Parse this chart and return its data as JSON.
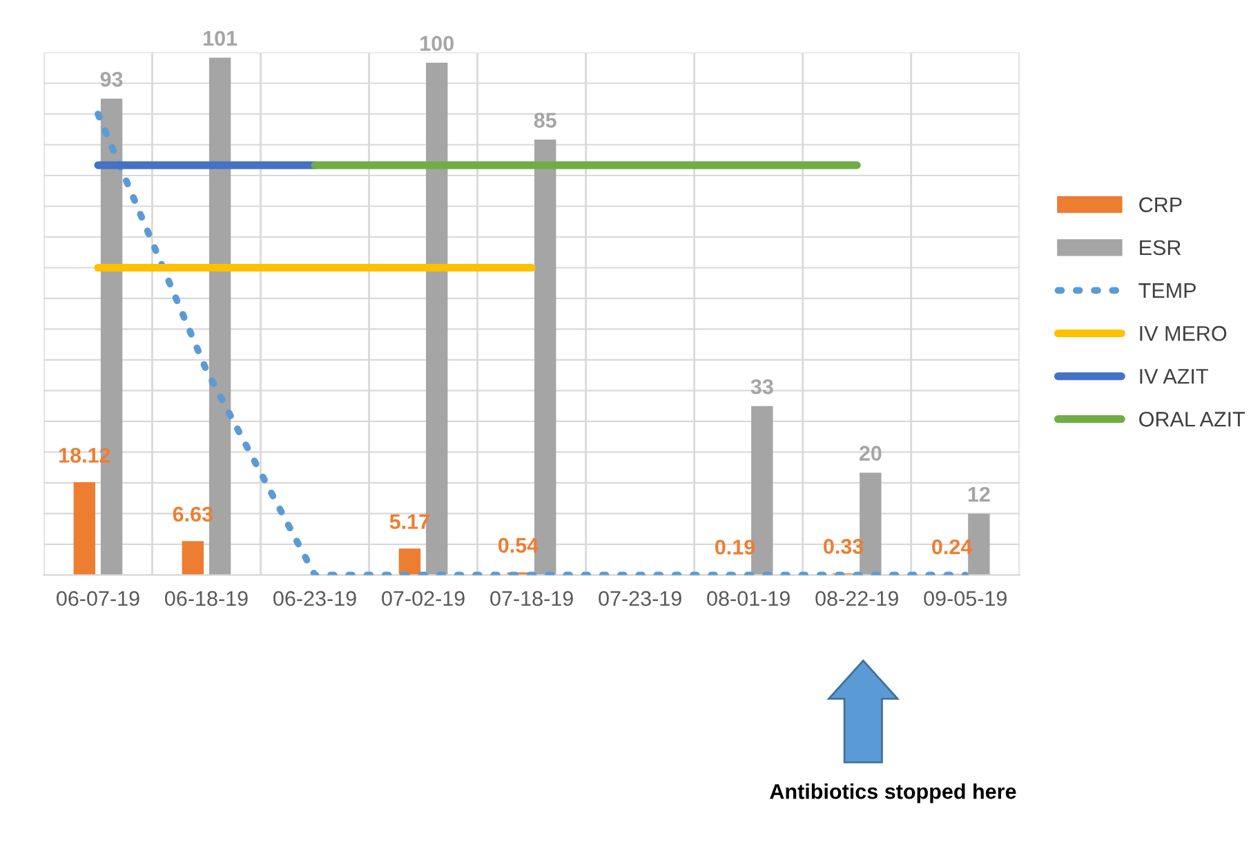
{
  "chart_data": {
    "type": "bar",
    "categories": [
      "06-07-19",
      "06-18-19",
      "06-23-19",
      "07-02-19",
      "07-18-19",
      "07-23-19",
      "08-01-19",
      "08-22-19",
      "09-05-19"
    ],
    "series": [
      {
        "name": "CRP",
        "color": "#ed7d31",
        "values": [
          18.12,
          6.63,
          null,
          5.17,
          0.54,
          null,
          0.19,
          0.33,
          0.24
        ],
        "value_labels": [
          "18.12",
          "6.63",
          null,
          "5.17",
          "0.54",
          null,
          "0.19",
          "0.33",
          "0.24"
        ]
      },
      {
        "name": "ESR",
        "color": "#a5a5a5",
        "values": [
          93,
          101,
          null,
          100,
          85,
          null,
          33,
          20,
          12
        ],
        "value_labels": [
          "93",
          "101",
          null,
          "100",
          "85",
          null,
          "33",
          "20",
          "12"
        ]
      },
      {
        "name": "TEMP",
        "type": "line",
        "line_style": "dotted",
        "color": "#5b9bd5",
        "values": [
          90,
          40,
          0,
          0,
          0,
          0,
          0,
          0,
          0
        ]
      },
      {
        "name": "IV MERO",
        "type": "line",
        "line_style": "solid",
        "color": "#ffc000",
        "values": [
          60,
          60,
          60,
          60,
          60,
          null,
          null,
          null,
          null
        ]
      },
      {
        "name": "IV AZIT",
        "type": "line",
        "line_style": "solid",
        "color": "#4472c4",
        "values": [
          80,
          80,
          80,
          null,
          null,
          null,
          null,
          null,
          null
        ]
      },
      {
        "name": "ORAL AZIT",
        "type": "line",
        "line_style": "solid",
        "color": "#70ad47",
        "values": [
          null,
          null,
          80,
          80,
          80,
          80,
          80,
          80,
          null
        ]
      }
    ],
    "ylim": [
      0,
      102
    ],
    "yticks": [
      {
        "value": 0,
        "label": null
      },
      {
        "value": 6,
        "label": null
      },
      {
        "value": 12,
        "label": null
      },
      {
        "value": 18,
        "label": null
      },
      {
        "value": 24,
        "label": null
      },
      {
        "value": 30,
        "label": null
      },
      {
        "value": 36,
        "label": null
      },
      {
        "value": 42,
        "label": null
      },
      {
        "value": 48,
        "label": null
      },
      {
        "value": 54,
        "label": null
      },
      {
        "value": 60,
        "label": null
      },
      {
        "value": 66,
        "label": null
      },
      {
        "value": 72,
        "label": null
      },
      {
        "value": 78,
        "label": null
      },
      {
        "value": 84,
        "label": null
      },
      {
        "value": 90,
        "label": null
      },
      {
        "value": 96,
        "label": null
      },
      {
        "value": 102,
        "label": null
      }
    ],
    "tick_labels": "x",
    "grid": true,
    "legend": "right",
    "annotations": [
      "Antibiotics stopped here"
    ]
  }
}
